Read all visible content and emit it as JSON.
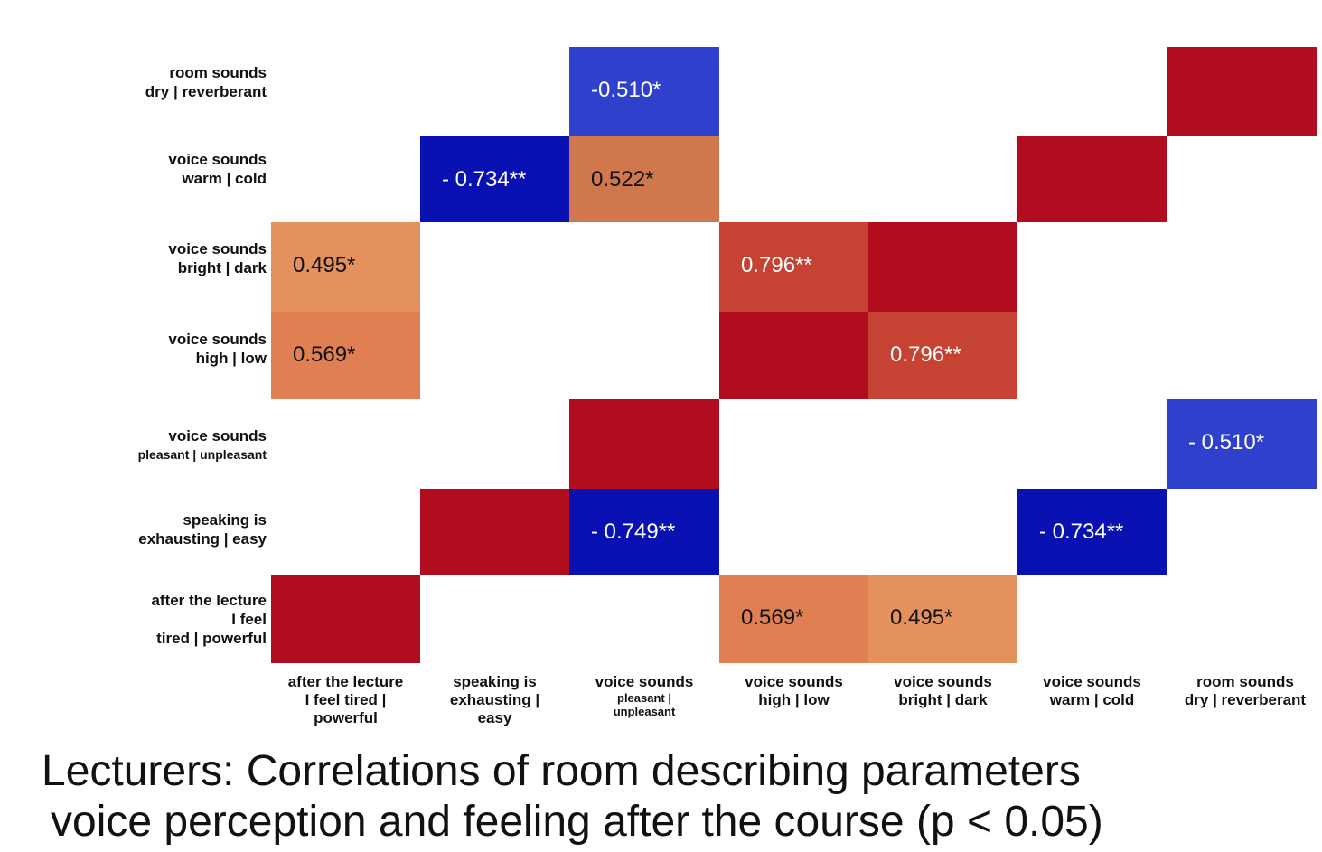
{
  "chart_data": {
    "type": "heatmap",
    "rows": [
      {
        "lines": [
          "room sounds",
          "dry | reverberant"
        ],
        "small": []
      },
      {
        "lines": [
          "voice sounds",
          "warm | cold"
        ],
        "small": []
      },
      {
        "lines": [
          "voice sounds",
          "bright | dark"
        ],
        "small": []
      },
      {
        "lines": [
          "voice sounds",
          "high | low"
        ],
        "small": []
      },
      {
        "lines": [
          "voice sounds",
          "pleasant | unpleasant"
        ],
        "small": [
          1
        ]
      },
      {
        "lines": [
          "speaking is",
          "exhausting | easy"
        ],
        "small": []
      },
      {
        "lines": [
          "after the lecture",
          "I feel",
          "tired | powerful"
        ],
        "small": []
      }
    ],
    "columns": [
      {
        "lines": [
          "after the lecture",
          "I feel tired |",
          "powerful"
        ],
        "small": []
      },
      {
        "lines": [
          "speaking is",
          "exhausting |",
          "easy"
        ],
        "small": []
      },
      {
        "lines": [
          "voice sounds",
          "pleasant |",
          "unpleasant"
        ],
        "small": [
          1,
          2
        ]
      },
      {
        "lines": [
          "voice sounds",
          "high | low"
        ],
        "small": []
      },
      {
        "lines": [
          "voice sounds",
          "bright | dark"
        ],
        "small": []
      },
      {
        "lines": [
          "voice sounds",
          "warm | cold"
        ],
        "small": []
      },
      {
        "lines": [
          "room sounds",
          "dry | reverberant"
        ],
        "small": []
      }
    ],
    "cells": [
      {
        "row": 0,
        "col": 2,
        "value": -0.51,
        "label": "-0.510*",
        "color": "#2f40cc",
        "text_color": "#ffffff"
      },
      {
        "row": 0,
        "col": 6,
        "value": 1,
        "label": "",
        "color": "#b20d1f",
        "text_color": "#ffffff"
      },
      {
        "row": 1,
        "col": 1,
        "value": -0.734,
        "label": "- 0.734**",
        "color": "#0a11b3",
        "text_color": "#ffffff"
      },
      {
        "row": 1,
        "col": 2,
        "value": 0.522,
        "label": "0.522*",
        "color": "#d0784b",
        "text_color": "#111111"
      },
      {
        "row": 1,
        "col": 5,
        "value": 1,
        "label": "",
        "color": "#b20d1f",
        "text_color": "#ffffff"
      },
      {
        "row": 2,
        "col": 0,
        "value": 0.495,
        "label": "0.495*",
        "color": "#e4915e",
        "text_color": "#111111"
      },
      {
        "row": 2,
        "col": 3,
        "value": 0.796,
        "label": "0.796**",
        "color": "#c64233",
        "text_color": "#ffffff"
      },
      {
        "row": 2,
        "col": 4,
        "value": 1,
        "label": "",
        "color": "#b20d1f",
        "text_color": "#ffffff"
      },
      {
        "row": 3,
        "col": 0,
        "value": 0.569,
        "label": "0.569*",
        "color": "#e07f52",
        "text_color": "#111111"
      },
      {
        "row": 3,
        "col": 3,
        "value": 1,
        "label": "",
        "color": "#b20d1f",
        "text_color": "#ffffff"
      },
      {
        "row": 3,
        "col": 4,
        "value": 0.796,
        "label": "0.796**",
        "color": "#c64233",
        "text_color": "#ffffff"
      },
      {
        "row": 4,
        "col": 2,
        "value": 1,
        "label": "",
        "color": "#b20d1f",
        "text_color": "#ffffff"
      },
      {
        "row": 4,
        "col": 6,
        "value": -0.51,
        "label": "- 0.510*",
        "color": "#2f40cc",
        "text_color": "#ffffff"
      },
      {
        "row": 5,
        "col": 1,
        "value": 1,
        "label": "",
        "color": "#b20d1f",
        "text_color": "#ffffff"
      },
      {
        "row": 5,
        "col": 2,
        "value": -0.749,
        "label": "- 0.749**",
        "color": "#0a11b3",
        "text_color": "#ffffff"
      },
      {
        "row": 5,
        "col": 5,
        "value": -0.734,
        "label": "- 0.734**",
        "color": "#0a11b3",
        "text_color": "#ffffff"
      },
      {
        "row": 6,
        "col": 0,
        "value": 1,
        "label": "",
        "color": "#b20d1f",
        "text_color": "#ffffff"
      },
      {
        "row": 6,
        "col": 3,
        "value": 0.569,
        "label": "0.569*",
        "color": "#e07f52",
        "text_color": "#111111"
      },
      {
        "row": 6,
        "col": 4,
        "value": 0.495,
        "label": "0.495*",
        "color": "#e4915e",
        "text_color": "#111111"
      }
    ]
  },
  "caption": {
    "line1": "Lecturers: Correlations of room describing parameters",
    "line2": "voice perception and feeling after the course (p < 0.05)"
  }
}
